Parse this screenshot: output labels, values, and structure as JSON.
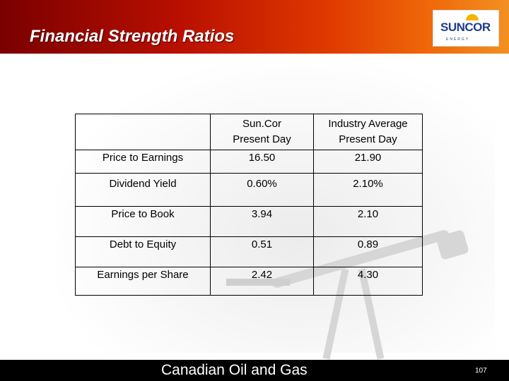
{
  "header": {
    "title": "Financial Strength Ratios",
    "logo_text": "SUNCOR",
    "logo_subtext": "ENERGY"
  },
  "table": {
    "columns": [
      "",
      "Sun.Cor\nPresent Day",
      "Industry Average\nPresent Day"
    ],
    "col1_line1": "Sun.Cor",
    "col1_line2": "Present Day",
    "col2_line1": "Industry Average",
    "col2_line2": "Present Day",
    "rows": [
      {
        "label": "Price to Earnings",
        "suncor": "16.50",
        "industry": "21.90"
      },
      {
        "label": "Dividend Yield",
        "suncor": "0.60%",
        "industry": "2.10%"
      },
      {
        "label": "Price to Book",
        "suncor": "3.94",
        "industry": "2.10"
      },
      {
        "label": "Debt to Equity",
        "suncor": "0.51",
        "industry": "0.89"
      },
      {
        "label": "Earnings per Share",
        "suncor": "2.42",
        "industry": "4.30"
      }
    ]
  },
  "footer": {
    "text": "Canadian Oil and Gas",
    "page_number": "107"
  },
  "colors": {
    "header_start": "#7a0000",
    "header_end": "#f29020",
    "logo_blue": "#1e3d8a",
    "footer": "#000000"
  }
}
